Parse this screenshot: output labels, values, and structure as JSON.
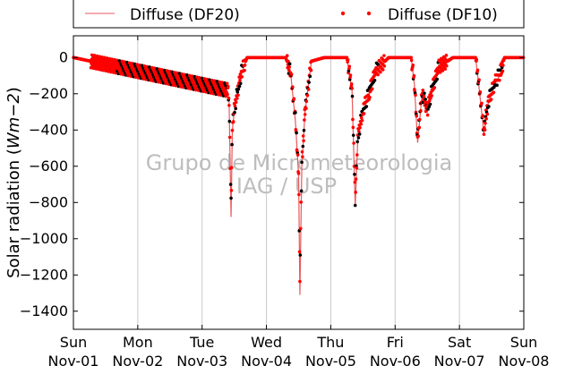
{
  "chart_data": {
    "type": "line",
    "ylabel": "Solar radiation (Wm−2)",
    "ylabel_plain": "Solar radiation (",
    "ylabel_math": "Wm",
    "ylabel_exp": "−2",
    "ylabel_close": ")",
    "ylim": [
      -1500,
      120
    ],
    "yticks": [
      0,
      -200,
      -400,
      -600,
      -800,
      -1000,
      -1200,
      -1400
    ],
    "xlim": [
      0,
      7
    ],
    "xticks": [
      {
        "x": 0,
        "day": "Sun",
        "date": "Nov-01"
      },
      {
        "x": 1,
        "day": "Mon",
        "date": "Nov-02"
      },
      {
        "x": 2,
        "day": "Tue",
        "date": "Nov-03"
      },
      {
        "x": 3,
        "day": "Wed",
        "date": "Nov-04"
      },
      {
        "x": 4,
        "day": "Thu",
        "date": "Nov-05"
      },
      {
        "x": 5,
        "day": "Fri",
        "date": "Nov-06"
      },
      {
        "x": 6,
        "day": "Sat",
        "date": "Nov-07"
      },
      {
        "x": 7,
        "day": "Sun",
        "date": "Nov-08"
      }
    ],
    "grid": "vertical",
    "legend_position": "top",
    "series": [
      {
        "name": "Diffuse (DF20)",
        "style": "line",
        "color": "#e8595c",
        "x": [
          0.0,
          2.4,
          2.42,
          2.45,
          2.47,
          2.5,
          2.55,
          2.62,
          2.7,
          2.9,
          3.3,
          3.38,
          3.45,
          3.5,
          3.52,
          3.55,
          3.6,
          3.7,
          3.9,
          4.25,
          4.33,
          4.38,
          4.42,
          4.5,
          4.6,
          4.7,
          4.9,
          5.25,
          5.3,
          5.35,
          5.42,
          5.5,
          5.58,
          5.68,
          5.9,
          6.25,
          6.3,
          6.38,
          6.45,
          6.55,
          6.65,
          6.7,
          7.0
        ],
        "y": [
          0,
          -190,
          -250,
          -880,
          -400,
          -300,
          -200,
          -80,
          0,
          0,
          0,
          -100,
          -350,
          -650,
          -1310,
          -600,
          -300,
          -20,
          0,
          0,
          -180,
          -820,
          -450,
          -300,
          -200,
          -80,
          0,
          0,
          -150,
          -470,
          -200,
          -300,
          -180,
          -50,
          0,
          0,
          -150,
          -420,
          -250,
          -150,
          -80,
          0,
          0
        ]
      },
      {
        "name": "Diffuse (DF10)",
        "style": "points",
        "color": "#ff0000",
        "x": [
          0.0,
          2.4,
          2.42,
          2.45,
          2.47,
          2.5,
          2.55,
          2.62,
          2.7,
          2.9,
          3.3,
          3.38,
          3.45,
          3.5,
          3.52,
          3.55,
          3.6,
          3.7,
          3.9,
          4.25,
          4.33,
          4.38,
          4.42,
          4.5,
          4.6,
          4.7,
          4.9,
          5.25,
          5.3,
          5.35,
          5.42,
          5.5,
          5.58,
          5.68,
          5.9,
          6.25,
          6.3,
          6.38,
          6.45,
          6.55,
          6.65,
          6.7,
          7.0
        ],
        "y": [
          0,
          -180,
          -240,
          -800,
          -390,
          -290,
          -190,
          -70,
          0,
          0,
          0,
          -90,
          -340,
          -640,
          -1200,
          -590,
          -290,
          -20,
          0,
          0,
          -170,
          -780,
          -440,
          -290,
          -190,
          -70,
          0,
          0,
          -140,
          -450,
          -190,
          -290,
          -170,
          -50,
          0,
          0,
          -140,
          -400,
          -240,
          -140,
          -70,
          0,
          0
        ]
      }
    ],
    "watermark": [
      "Grupo de Micrometeorologia",
      "IAG / USP"
    ]
  }
}
